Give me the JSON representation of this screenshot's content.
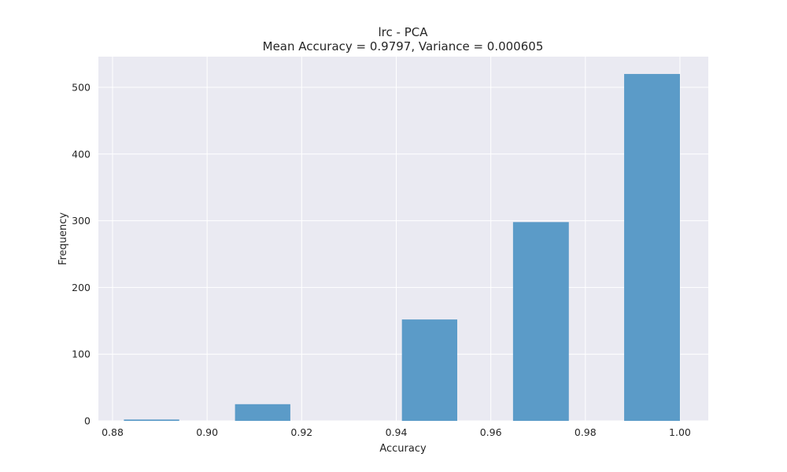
{
  "colors": {
    "plot_background": "#eaeaf2",
    "grid": "#ffffff",
    "bar_fill": "#5b9bc8",
    "text": "#262626"
  },
  "chart_data": {
    "type": "bar",
    "title": "lrc - PCA",
    "subtitle": "Mean Accuracy = 0.9797, Variance = 0.000605",
    "xlabel": "Accuracy",
    "ylabel": "Frequency",
    "xlim": [
      0.877,
      1.006
    ],
    "ylim": [
      0,
      546
    ],
    "grid": true,
    "legend": "none",
    "x_ticks": [
      {
        "value": 0.88,
        "label": "0.88"
      },
      {
        "value": 0.9,
        "label": "0.90"
      },
      {
        "value": 0.92,
        "label": "0.92"
      },
      {
        "value": 0.94,
        "label": "0.94"
      },
      {
        "value": 0.96,
        "label": "0.96"
      },
      {
        "value": 0.98,
        "label": "0.98"
      },
      {
        "value": 1.0,
        "label": "1.00"
      }
    ],
    "y_ticks": [
      {
        "value": 0,
        "label": "0"
      },
      {
        "value": 100,
        "label": "100"
      },
      {
        "value": 200,
        "label": "200"
      },
      {
        "value": 300,
        "label": "300"
      },
      {
        "value": 400,
        "label": "400"
      },
      {
        "value": 500,
        "label": "500"
      }
    ],
    "bins": [
      {
        "x0": 0.8824,
        "x1": 0.8941,
        "count": 2
      },
      {
        "x0": 0.8941,
        "x1": 0.9059,
        "count": 0
      },
      {
        "x0": 0.9059,
        "x1": 0.9176,
        "count": 25
      },
      {
        "x0": 0.9176,
        "x1": 0.9294,
        "count": 0
      },
      {
        "x0": 0.9294,
        "x1": 0.9412,
        "count": 0
      },
      {
        "x0": 0.9412,
        "x1": 0.9529,
        "count": 152
      },
      {
        "x0": 0.9529,
        "x1": 0.9647,
        "count": 0
      },
      {
        "x0": 0.9647,
        "x1": 0.9765,
        "count": 298
      },
      {
        "x0": 0.9765,
        "x1": 0.9882,
        "count": 0
      },
      {
        "x0": 0.9882,
        "x1": 1.0,
        "count": 520
      }
    ]
  }
}
